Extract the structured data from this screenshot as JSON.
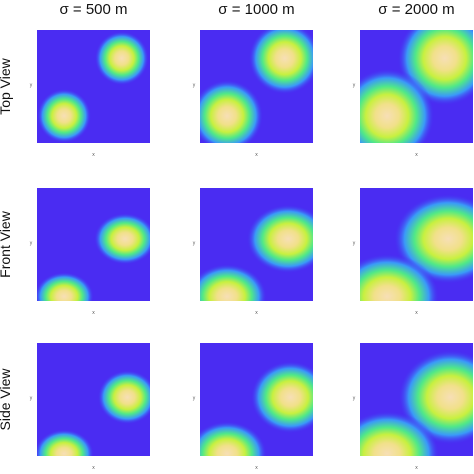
{
  "columns": [
    "σ = 500 m",
    "σ = 1000 m",
    "σ = 2000 m"
  ],
  "rows": [
    "Top View",
    "Front View",
    "Side View"
  ],
  "axis_labels": {
    "x": "x",
    "y": "y"
  }
}
